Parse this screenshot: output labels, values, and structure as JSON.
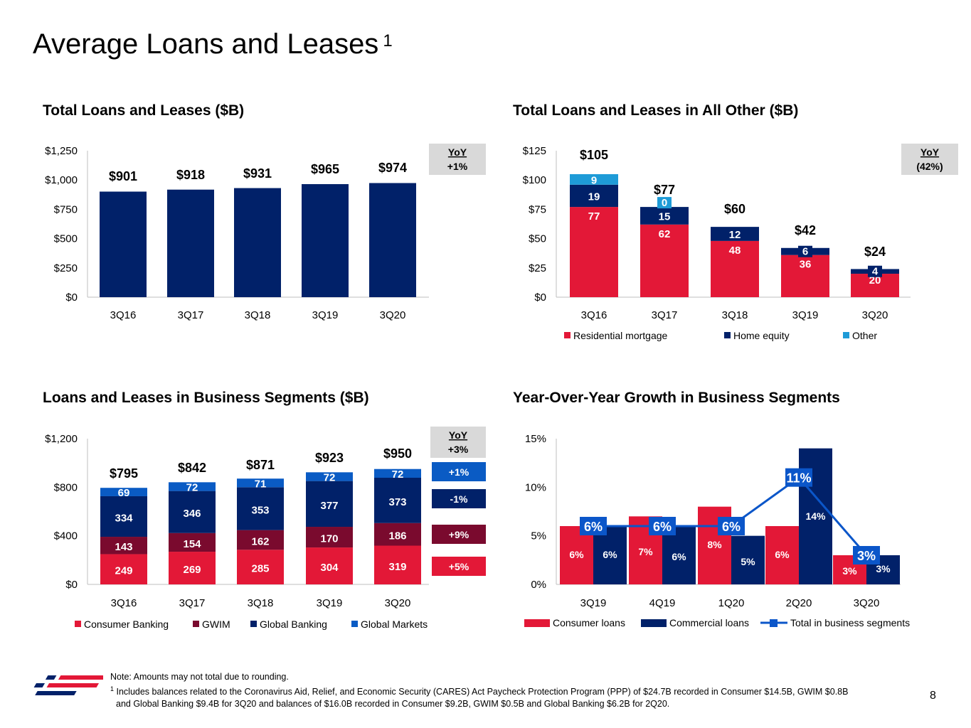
{
  "page": {
    "title": "Average Loans and Leases",
    "title_sup": "1",
    "page_number": "8",
    "note": "Note: Amounts may not total due to rounding.",
    "footnote_sup": "1",
    "footnote_line1": "Includes balances related to the Coronavirus Aid, Relief, and Economic Security (CARES) Act Paycheck Protection Program (PPP) of $24.7B recorded in Consumer $14.5B, GWIM $0.8B",
    "footnote_line2": "and Global Banking $9.4B for 3Q20 and balances of $16.0B recorded in Consumer $9.2B, GWIM $0.5B and Global Banking $6.2B for 2Q20.",
    "colors": {
      "navy": "#012169",
      "red": "#E31837",
      "maroon": "#7A0A2E",
      "blue": "#0A5BC4",
      "light_blue": "#1E9BD7",
      "line_blue": "#0B56C9"
    }
  },
  "chart_data": [
    {
      "type": "bar",
      "title": "Total Loans and Leases ($B)",
      "categories": [
        "3Q16",
        "3Q17",
        "3Q18",
        "3Q19",
        "3Q20"
      ],
      "values": [
        901,
        918,
        931,
        965,
        974
      ],
      "value_labels": [
        "$901",
        "$918",
        "$931",
        "$965",
        "$974"
      ],
      "yticks": [
        "$0",
        "$250",
        "$500",
        "$750",
        "$1,000",
        "$1,250"
      ],
      "ylim": [
        0,
        1250
      ],
      "yoy_header": "YoY",
      "yoy_value": "+1%"
    },
    {
      "type": "bar",
      "stacked": true,
      "title": "Total Loans and Leases in All Other ($B)",
      "categories": [
        "3Q16",
        "3Q17",
        "3Q18",
        "3Q19",
        "3Q20"
      ],
      "series": [
        {
          "name": "Residential mortgage",
          "values": [
            77,
            62,
            48,
            36,
            20
          ],
          "labels": [
            "77",
            "62",
            "48",
            "36",
            "20"
          ]
        },
        {
          "name": "Home equity",
          "values": [
            19,
            15,
            12,
            6,
            4
          ],
          "labels": [
            "19",
            "15",
            "12",
            "6",
            "4"
          ]
        },
        {
          "name": "Other",
          "values": [
            9,
            0,
            0,
            0,
            0
          ],
          "labels": [
            "9",
            "0",
            "",
            "",
            ""
          ]
        }
      ],
      "totals": [
        "$105",
        "$77",
        "$60",
        "$42",
        "$24"
      ],
      "yticks": [
        "$0",
        "$25",
        "$50",
        "$75",
        "$100",
        "$125"
      ],
      "ylim": [
        0,
        125
      ],
      "yoy_header": "YoY",
      "yoy_value": "(42%)"
    },
    {
      "type": "bar",
      "stacked": true,
      "title": "Loans and Leases in Business Segments ($B)",
      "categories": [
        "3Q16",
        "3Q17",
        "3Q18",
        "3Q19",
        "3Q20"
      ],
      "series": [
        {
          "name": "Consumer Banking",
          "values": [
            249,
            269,
            285,
            304,
            319
          ],
          "labels": [
            "249",
            "269",
            "285",
            "304",
            "319"
          ],
          "yoy": "+5%"
        },
        {
          "name": "GWIM",
          "values": [
            143,
            154,
            162,
            170,
            186
          ],
          "labels": [
            "143",
            "154",
            "162",
            "170",
            "186"
          ],
          "yoy": "+9%"
        },
        {
          "name": "Global Banking",
          "values": [
            334,
            346,
            353,
            377,
            373
          ],
          "labels": [
            "334",
            "346",
            "353",
            "377",
            "373"
          ],
          "yoy": "-1%"
        },
        {
          "name": "Global Markets",
          "values": [
            69,
            72,
            71,
            72,
            72
          ],
          "labels": [
            "69",
            "72",
            "71",
            "72",
            "72"
          ],
          "yoy": "+1%"
        }
      ],
      "totals": [
        "$795",
        "$842",
        "$871",
        "$923",
        "$950"
      ],
      "yticks": [
        "$0",
        "$400",
        "$800",
        "$1,200"
      ],
      "ylim": [
        0,
        1200
      ],
      "yoy_header": "YoY",
      "yoy_value": "+3%"
    },
    {
      "type": "bar",
      "title": "Year-Over-Year Growth in Business Segments",
      "categories": [
        "3Q19",
        "4Q19",
        "1Q20",
        "2Q20",
        "3Q20"
      ],
      "series": [
        {
          "name": "Consumer loans",
          "values": [
            6,
            7,
            8,
            6,
            3
          ],
          "labels": [
            "6%",
            "7%",
            "8%",
            "6%",
            "3%"
          ]
        },
        {
          "name": "Commercial loans",
          "values": [
            6,
            6,
            5,
            14,
            3
          ],
          "labels": [
            "6%",
            "6%",
            "5%",
            "14%",
            "3%"
          ]
        },
        {
          "name": "Total in business segments",
          "type": "line",
          "values": [
            6,
            6,
            6,
            11,
            3
          ],
          "labels": [
            "6%",
            "6%",
            "6%",
            "11%",
            "3%"
          ]
        }
      ],
      "yticks": [
        "0%",
        "5%",
        "10%",
        "15%"
      ],
      "ylim": [
        0,
        15
      ]
    }
  ]
}
